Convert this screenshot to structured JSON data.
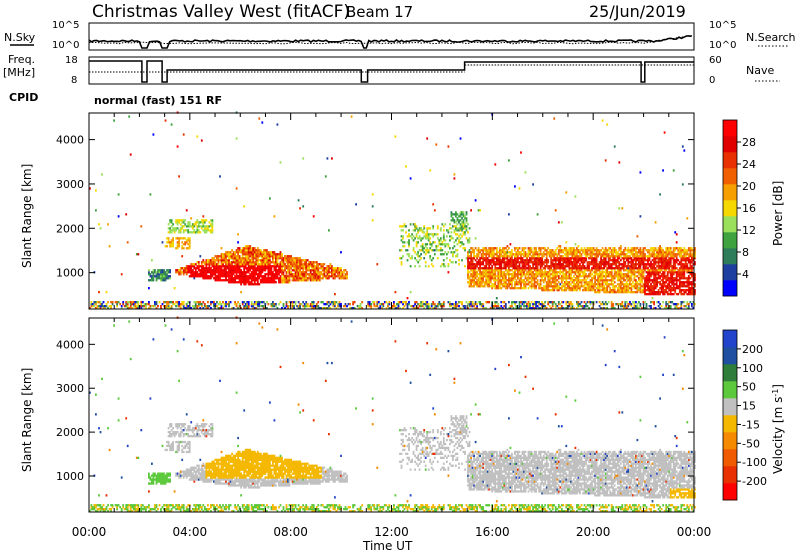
{
  "header": {
    "title": "Christmas Valley West (fitACF)",
    "beam": "Beam 17",
    "date": "25/Jun/2019"
  },
  "summary": {
    "nsky_label": "N.Sky",
    "nsky_ticks": [
      "10^5",
      "10^0"
    ],
    "nsearch_label": "N.Search",
    "nsearch_ticks": [
      "10^5",
      "10^0"
    ],
    "freq_label": "Freq.",
    "freq_unit": "[MHz]",
    "freq_ticks": [
      "18",
      "8"
    ],
    "nave_label": "Nave",
    "nave_ticks": [
      "60",
      "0"
    ],
    "cpid_label": "CPID",
    "cpid_text": "normal (fast) 151 RF"
  },
  "colors": {
    "power_scale": [
      "#0000ff",
      "#1f3fa0",
      "#2e7d5a",
      "#3ea33e",
      "#9be05a",
      "#f5d800",
      "#f5a000",
      "#f06000",
      "#e83000",
      "#e00000",
      "#ff0000"
    ],
    "velocity_scale": [
      "#2244cc",
      "#1f4fa0",
      "#2e7d3a",
      "#5cc93c",
      "#c0c0c0",
      "#f5b800",
      "#f58a00",
      "#f05a00",
      "#e83000",
      "#ff0000"
    ]
  },
  "chart_data": [
    {
      "type": "heatmap",
      "name": "power",
      "ylabel": "Slant Range [km]",
      "yticks": [
        "4000",
        "3000",
        "2000",
        "1000"
      ],
      "ylim": [
        180,
        4600
      ],
      "colorbar_label": "Power [dB]",
      "colorbar_ticks": [
        "28",
        "24",
        "20",
        "16",
        "12",
        "8",
        "4"
      ],
      "colorbar_range": [
        0,
        30
      ]
    },
    {
      "type": "heatmap",
      "name": "velocity",
      "ylabel": "Slant Range [km]",
      "yticks": [
        "4000",
        "3000",
        "2000",
        "1000"
      ],
      "ylim": [
        180,
        4600
      ],
      "xlabel": "Time UT",
      "xticks": [
        "00:00",
        "04:00",
        "08:00",
        "12:00",
        "16:00",
        "20:00",
        "00:00"
      ],
      "xlim": [
        0,
        24
      ],
      "colorbar_label": "Velocity [m s",
      "colorbar_label_sup": "-1",
      "colorbar_label_end": "]",
      "colorbar_ticks": [
        "200",
        "100",
        "50",
        "15",
        "-15",
        "-50",
        "-100",
        "-200"
      ]
    }
  ]
}
